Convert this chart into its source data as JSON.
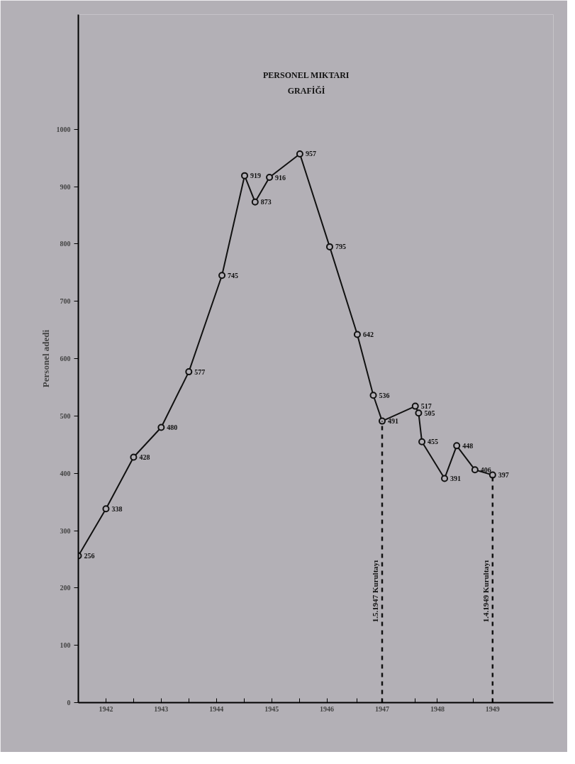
{
  "chart_data": {
    "type": "line",
    "title": "PERSONEL MIKTARI\nGRAFİĞİ",
    "ylabel": "Personel adedi",
    "x": [
      1941.5,
      1942.0,
      1942.5,
      1943.0,
      1943.5,
      1944.1,
      1944.51,
      1944.7,
      1944.96,
      1945.51,
      1946.05,
      1946.55,
      1946.84,
      1947.0,
      1947.6,
      1947.66,
      1947.72,
      1948.13,
      1948.35,
      1948.68,
      1949.0
    ],
    "series": [
      {
        "color": "#111111",
        "values": [
          256,
          338,
          428,
          480,
          577,
          745,
          919,
          873,
          916,
          957,
          795,
          642,
          536,
          491,
          517,
          505,
          455,
          391,
          448,
          406,
          397
        ]
      }
    ],
    "data_labels": true,
    "marker": "circle",
    "line_style": "solid",
    "grid": false,
    "xlim": [
      1941.5,
      1950.1
    ],
    "xticks": [
      {
        "value": 1942,
        "label": "1942"
      },
      {
        "value": 1942.5,
        "label": null
      },
      {
        "value": 1943,
        "label": "1943"
      },
      {
        "value": 1943.5,
        "label": null
      },
      {
        "value": 1944,
        "label": "1944"
      },
      {
        "value": 1944.5,
        "label": null
      },
      {
        "value": 1945,
        "label": "1945"
      },
      {
        "value": 1945.5,
        "label": null
      },
      {
        "value": 1946,
        "label": "1946"
      },
      {
        "value": 1946.55,
        "label": null
      },
      {
        "value": 1947,
        "label": "1947"
      },
      {
        "value": 1947.6,
        "label": null
      },
      {
        "value": 1948,
        "label": "1948"
      },
      {
        "value": 1948.65,
        "label": null
      },
      {
        "value": 1949,
        "label": "1949"
      }
    ],
    "ylim": [
      0,
      1200
    ],
    "yticks": [
      0,
      100,
      200,
      300,
      400,
      500,
      600,
      700,
      800,
      900,
      1000
    ],
    "ref_lines": [
      {
        "axis": "x",
        "value": 1947.0,
        "label": "1.5.1947 Kurultayı",
        "line_style": "dashed",
        "color": "#111111"
      },
      {
        "axis": "x",
        "value": 1949.0,
        "label": "1.4.1949 Kurultayı",
        "line_style": "dashed",
        "color": "#111111"
      }
    ]
  }
}
